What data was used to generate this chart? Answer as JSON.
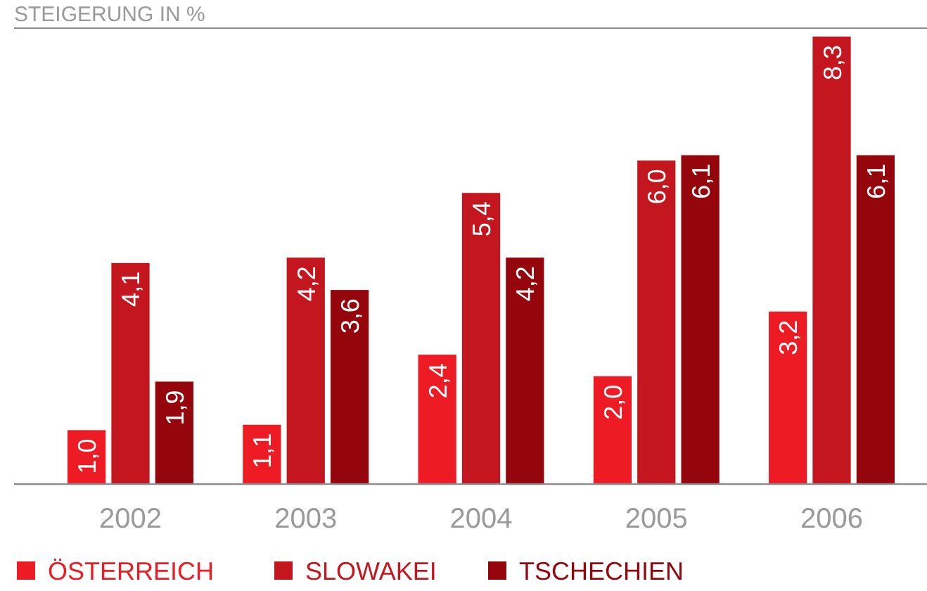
{
  "chart_data": {
    "type": "bar",
    "title": "STEIGERUNG IN %",
    "categories": [
      "2002",
      "2003",
      "2004",
      "2005",
      "2006"
    ],
    "series": [
      {
        "name": "ÖSTERREICH",
        "color": "#ed1c24",
        "values": [
          1.0,
          1.1,
          2.4,
          2.0,
          3.2
        ],
        "value_labels": [
          "1,0",
          "1,1",
          "2,4",
          "2,0",
          "3,2"
        ]
      },
      {
        "name": "SLOWAKEI",
        "color": "#c4161e",
        "values": [
          4.1,
          4.2,
          5.4,
          6.0,
          8.3
        ],
        "value_labels": [
          "4,1",
          "4,2",
          "5,4",
          "6,0",
          "8,3"
        ]
      },
      {
        "name": "TSCHECHIEN",
        "color": "#94060c",
        "values": [
          1.9,
          3.6,
          4.2,
          6.1,
          6.1
        ],
        "value_labels": [
          "1,9",
          "3,6",
          "4,2",
          "6,1",
          "6,1"
        ]
      }
    ],
    "legend": "bottom"
  }
}
